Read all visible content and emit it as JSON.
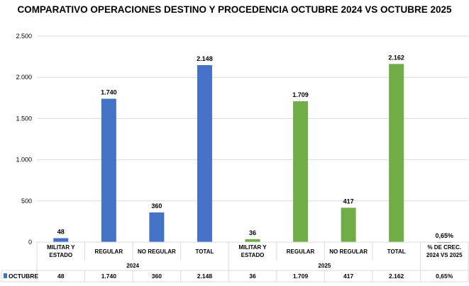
{
  "chart_data": {
    "type": "bar",
    "title": "COMPARATIVO OPERACIONES DESTINO Y PROCEDENCIA OCTUBRE 2024 VS OCTUBRE 2025",
    "categories": [
      {
        "group": "2024",
        "label": [
          "MILITAR Y",
          "ESTADO"
        ]
      },
      {
        "group": "2024",
        "label": [
          "REGULAR"
        ]
      },
      {
        "group": "2024",
        "label": [
          "NO REGULAR"
        ]
      },
      {
        "group": "2024",
        "label": [
          "TOTAL"
        ]
      },
      {
        "group": "2025",
        "label": [
          "MILITAR Y",
          "ESTADO"
        ]
      },
      {
        "group": "2025",
        "label": [
          "REGULAR"
        ]
      },
      {
        "group": "2025",
        "label": [
          "NO REGULAR"
        ]
      },
      {
        "group": "2025",
        "label": [
          "TOTAL"
        ]
      },
      {
        "group": "",
        "label": [
          "% DE CREC.",
          "2024 VS 2025"
        ]
      }
    ],
    "groups": [
      "2024",
      "2025"
    ],
    "series": [
      {
        "name": "OCTUBRE",
        "values": [
          48,
          1740,
          360,
          2148,
          36,
          1709,
          417,
          2162,
          0.65
        ],
        "labels": [
          "48",
          "1.740",
          "360",
          "2.148",
          "36",
          "1.709",
          "417",
          "2.162",
          "0,65%"
        ]
      }
    ],
    "bar_colors": [
      "#4472C4",
      "#4472C4",
      "#4472C4",
      "#4472C4",
      "#70AD47",
      "#70AD47",
      "#70AD47",
      "#70AD47",
      "#4472C4"
    ],
    "yticks": [
      0,
      500,
      1000,
      1500,
      2000,
      2500
    ],
    "ytick_labels": [
      "0",
      "500",
      "1.000",
      "1.500",
      "2.000",
      "2.500"
    ],
    "ylim": [
      0,
      2500
    ],
    "grid": true,
    "legend": "data-table"
  }
}
